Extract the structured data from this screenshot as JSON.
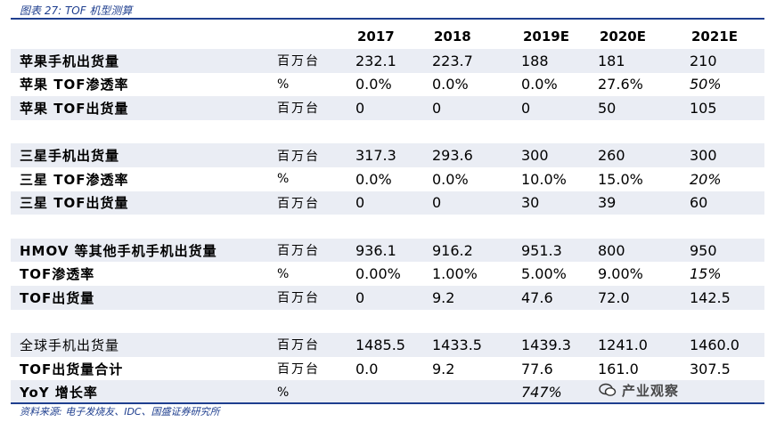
{
  "caption": "图表 27: TOF 机型测算",
  "header": {
    "name": "",
    "unit": "",
    "years": [
      "2017",
      "2018",
      "2019E",
      "2020E",
      "2021E"
    ]
  },
  "rows": [
    {
      "name": "苹果手机出货量",
      "unit": "百万台",
      "values": [
        "232.1",
        "223.7",
        "188",
        "181",
        "210"
      ]
    },
    {
      "name": "苹果 TOF渗透率",
      "unit": "%",
      "values": [
        "0.0%",
        "0.0%",
        "0.0%",
        "27.6%",
        "50%"
      ]
    },
    {
      "name": "苹果 TOF出货量",
      "unit": "百万台",
      "values": [
        "0",
        "0",
        "0",
        "50",
        "105"
      ]
    },
    {
      "name": "三星手机出货量",
      "unit": "百万台",
      "values": [
        "317.3",
        "293.6",
        "300",
        "260",
        "300"
      ]
    },
    {
      "name": "三星 TOF渗透率",
      "unit": "%",
      "values": [
        "0.0%",
        "0.0%",
        "10.0%",
        "15.0%",
        "20%"
      ]
    },
    {
      "name": "三星 TOF出货量",
      "unit": "百万台",
      "values": [
        "0",
        "0",
        "30",
        "39",
        "60"
      ]
    },
    {
      "name": "HMOV 等其他手机手机出货量",
      "unit": "百万台",
      "values": [
        "936.1",
        "916.2",
        "951.3",
        "800",
        "950"
      ]
    },
    {
      "name": "TOF渗透率",
      "unit": "%",
      "values": [
        "0.00%",
        "1.00%",
        "5.00%",
        "9.00%",
        "15%"
      ]
    },
    {
      "name": "TOF出货量",
      "unit": "百万台",
      "values": [
        "0",
        "9.2",
        "47.6",
        "72.0",
        "142.5"
      ]
    },
    {
      "name": "全球手机出货量",
      "unit": "百万台",
      "values": [
        "1485.5",
        "1433.5",
        "1439.3",
        "1241.0",
        "1460.0"
      ]
    },
    {
      "name": "TOF出货量合计",
      "unit": "百万台",
      "values": [
        "0.0",
        "9.2",
        "77.6",
        "161.0",
        "307.5"
      ]
    },
    {
      "name": "YoY 增长率",
      "unit": "%",
      "values": [
        "",
        "",
        "747%",
        "",
        ""
      ]
    }
  ],
  "watermark": "产业观察",
  "source": "资料来源: 电子发烧友、IDC、国盛证券研究所"
}
